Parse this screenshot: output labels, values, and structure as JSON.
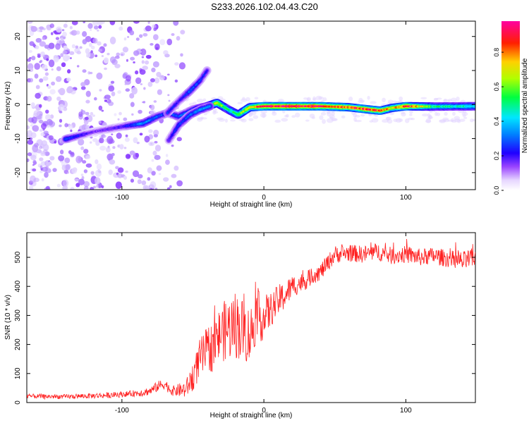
{
  "title": "S233.2026.102.04.43.C20",
  "chart_data": [
    {
      "type": "heatmap",
      "xlabel": "Height of straight line (km)",
      "ylabel": "Frequency (Hz)",
      "xlim": [
        -167,
        149
      ],
      "ylim": [
        -25,
        24.5
      ],
      "xticks": [
        -100,
        0,
        100
      ],
      "yticks": [
        -20,
        -10,
        0,
        10,
        20
      ],
      "colorbar": {
        "label": "Normalized spectral amplitude",
        "ticks": [
          "0.0",
          "0.2",
          "0.4",
          "0.6",
          "0.8"
        ],
        "range": [
          0,
          0.98
        ]
      },
      "ridges": [
        {
          "name": "main-track",
          "x": [
            -140,
            -120,
            -100,
            -85,
            -75,
            -68,
            -60,
            -50,
            -40,
            -33,
            -25,
            -18,
            -10,
            0,
            20,
            40,
            60,
            75,
            82,
            90,
            100,
            120,
            149
          ],
          "y": [
            -10.2,
            -8,
            -6.5,
            -5.5,
            -3.5,
            -2.5,
            -3.5,
            -1.5,
            -0.5,
            0.5,
            -1.5,
            -3,
            -0.8,
            -0.5,
            -0.5,
            -0.5,
            -0.8,
            -1.5,
            -1.8,
            -1,
            -0.5,
            -0.6,
            -0.5
          ],
          "amplitude": [
            0.3,
            0.15,
            0.2,
            0.35,
            0.3,
            0.25,
            0.3,
            0.3,
            0.5,
            0.7,
            0.5,
            0.6,
            0.75,
            0.9,
            0.95,
            0.9,
            0.85,
            0.9,
            0.85,
            0.7,
            0.9,
            0.5,
            0.45
          ]
        },
        {
          "name": "rising-branch-upper",
          "x": [
            -68,
            -60,
            -52,
            -45,
            -40
          ],
          "y": [
            -2.5,
            1,
            4,
            7,
            10
          ],
          "amplitude": [
            0.25,
            0.2,
            0.3,
            0.25,
            0.2
          ]
        },
        {
          "name": "rising-branch-lower",
          "x": [
            -67,
            -60,
            -52,
            -45,
            -38
          ],
          "y": [
            -10.5,
            -6,
            -3,
            -1.5,
            -0.5
          ],
          "amplitude": [
            0.2,
            0.25,
            0.3,
            0.35,
            0.35
          ]
        }
      ]
    },
    {
      "type": "line",
      "xlabel": "Height of straight line (km)",
      "ylabel": "SNR (10 * v/v)",
      "xlim": [
        -167,
        149
      ],
      "ylim": [
        0,
        585
      ],
      "xticks": [
        -100,
        0,
        100
      ],
      "yticks": [
        0,
        100,
        200,
        300,
        400,
        500
      ],
      "series": [
        {
          "name": "SNR",
          "color": "#ff2020",
          "x": [
            -167,
            -140,
            -110,
            -95,
            -85,
            -80,
            -75,
            -70,
            -65,
            -55,
            -50,
            -45,
            -40,
            -35,
            -30,
            -20,
            -15,
            -10,
            -5,
            0,
            5,
            10,
            15,
            20,
            25,
            30,
            35,
            40,
            45,
            50,
            60,
            70,
            80,
            90,
            100,
            110,
            120,
            130,
            140,
            149
          ],
          "values": [
            22,
            20,
            25,
            30,
            35,
            40,
            55,
            65,
            40,
            45,
            90,
            150,
            180,
            200,
            240,
            270,
            250,
            230,
            300,
            290,
            320,
            350,
            370,
            400,
            410,
            420,
            440,
            450,
            480,
            510,
            515,
            510,
            520,
            505,
            510,
            500,
            505,
            495,
            485,
            500
          ],
          "noise": [
            8,
            8,
            10,
            10,
            14,
            14,
            18,
            20,
            16,
            30,
            50,
            70,
            80,
            90,
            100,
            120,
            110,
            100,
            90,
            80,
            60,
            55,
            50,
            40,
            35,
            30,
            30,
            30,
            30,
            30,
            30,
            30,
            30,
            30,
            30,
            30,
            30,
            30,
            35,
            35
          ]
        }
      ]
    }
  ]
}
